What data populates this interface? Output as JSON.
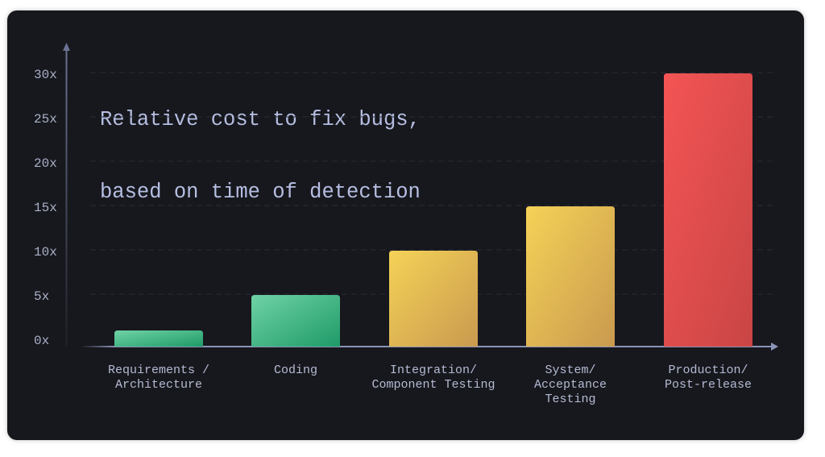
{
  "chart_data": {
    "type": "bar",
    "title": "Relative cost to fix bugs,\nbased on time of detection",
    "title_lines": [
      "Relative cost to fix bugs,",
      "based on time of detection"
    ],
    "categories": [
      [
        "Requirements /",
        "Architecture"
      ],
      [
        "Coding"
      ],
      [
        "Integration/",
        "Component Testing"
      ],
      [
        "System/",
        "Acceptance",
        "Testing"
      ],
      [
        "Production/",
        "Post-release"
      ]
    ],
    "values": [
      1,
      5,
      10,
      15,
      30
    ],
    "bar_colors": [
      [
        "#6fd3a6",
        "#1f9a68"
      ],
      [
        "#6fd3a6",
        "#1f9a68"
      ],
      [
        "#f5d257",
        "#c99a4f"
      ],
      [
        "#f5d257",
        "#c99a4f"
      ],
      [
        "#f45454",
        "#c94545"
      ]
    ],
    "y_ticks": [
      "0x",
      "5x",
      "10x",
      "15x",
      "20x",
      "25x",
      "30x"
    ],
    "y_tick_values": [
      0,
      5,
      10,
      15,
      20,
      25,
      30
    ],
    "ylim": [
      0,
      30
    ],
    "xlabel": "",
    "ylabel": "",
    "grid": true,
    "legend": "none"
  }
}
